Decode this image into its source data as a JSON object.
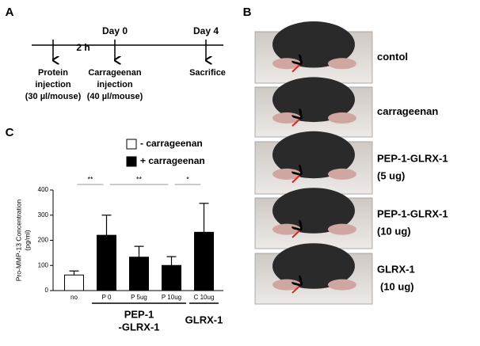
{
  "panel_a": {
    "letter": "A",
    "interval": "2 h",
    "days": [
      "Day 0",
      "Day 4"
    ],
    "events": [
      {
        "line1": "Protein",
        "line2": "injection",
        "line3": "(30 µl/mouse)"
      },
      {
        "line1": "Carrageenan",
        "line2": "injection",
        "line3": "(40 µl/mouse)"
      },
      {
        "line1": "Sacrifice"
      }
    ]
  },
  "panel_b": {
    "letter": "B",
    "rows": [
      {
        "line1": "contol"
      },
      {
        "line1": "carrageenan"
      },
      {
        "line1": "PEP-1-GLRX-1",
        "line2": "(5 ug)"
      },
      {
        "line1": "PEP-1-GLRX-1",
        "line2": "(10 ug)"
      },
      {
        "line1": "GLRX-1",
        "line2": "(10 ug)"
      }
    ]
  },
  "panel_c": {
    "letter": "C",
    "significance": [
      {
        "label": "**",
        "from": 0,
        "to": 1
      },
      {
        "label": "**",
        "from": 1,
        "to": 3
      },
      {
        "label": "*",
        "from": 3,
        "to": 4
      }
    ],
    "groups": [
      {
        "line1": "PEP-1",
        "line2": "-GLRX-1",
        "from": 1,
        "to": 3
      },
      {
        "line1": "GLRX-1",
        "from": 4,
        "to": 4
      }
    ]
  },
  "chart_data": {
    "type": "bar",
    "ylabel": [
      "Pro-MMP-13 Concentration",
      "(pg/ml)"
    ],
    "categories": [
      "no",
      "P 0",
      "P 5ug",
      "P 10ug",
      "C 10ug"
    ],
    "series": [
      {
        "name": "- carrageenan",
        "color": "#ffffff",
        "values": [
          62,
          null,
          null,
          null,
          null
        ],
        "errors": [
          16,
          null,
          null,
          null,
          null
        ]
      },
      {
        "name": "+ carrageenan",
        "color": "#000000",
        "values": [
          null,
          220,
          133,
          100,
          232
        ],
        "errors": [
          null,
          80,
          43,
          35,
          115
        ]
      }
    ],
    "ylim": [
      0,
      400
    ],
    "yticks": [
      0,
      100,
      200,
      300,
      400
    ]
  }
}
